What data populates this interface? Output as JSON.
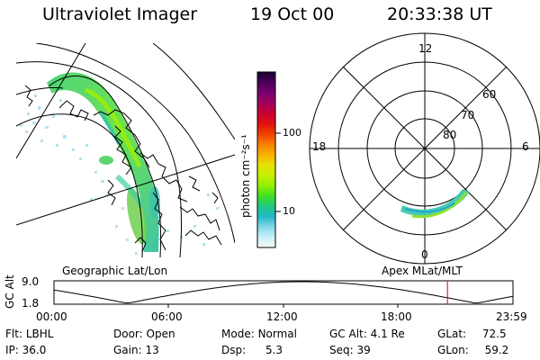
{
  "header": {
    "instrument": "Ultraviolet Imager",
    "date": "19 Oct 00",
    "time": "20:33:38 UT"
  },
  "left_panel": {
    "caption": "Geographic Lat/Lon"
  },
  "colorbar": {
    "unit_label": "photon cm⁻²s⁻¹",
    "ticks": [
      "100",
      "10"
    ],
    "scale": "log",
    "colors_top_to_bottom": [
      "#1a0030",
      "#4a005a",
      "#7a0070",
      "#a00060",
      "#c80030",
      "#e01010",
      "#f04000",
      "#f88000",
      "#f8b000",
      "#e8e000",
      "#c8f000",
      "#90f000",
      "#40e020",
      "#20c880",
      "#20b8c8",
      "#80d8e8",
      "#c8f0f8",
      "#f8f8f8"
    ]
  },
  "right_panel": {
    "caption": "Apex MLat/MLT",
    "mlt_labels": {
      "top": "12",
      "right": "6",
      "bottom": "0",
      "left": "18"
    },
    "mlat_labels": [
      "60",
      "70",
      "80"
    ]
  },
  "altitude_plot": {
    "axis_label": "GC Alt",
    "y_ticks": [
      "9.0",
      "1.8"
    ],
    "x_ticks": [
      "00:00",
      "06:00",
      "12:00",
      "18:00",
      "23:59"
    ],
    "marker_color": "#e00000",
    "marker_time": "20:33:38"
  },
  "status": {
    "row1": [
      {
        "label": "Flt:",
        "value": "LBHL"
      },
      {
        "label": "Door:",
        "value": "Open"
      },
      {
        "label": "Mode:",
        "value": "Normal"
      },
      {
        "label": "GC Alt:",
        "value": "4.1 Re"
      },
      {
        "label": "GLat:",
        "value": "72.5"
      }
    ],
    "row2": [
      {
        "label": "IP:",
        "value": "36.0"
      },
      {
        "label": "Gain:",
        "value": "13"
      },
      {
        "label": "Dsp:",
        "value": "5.3"
      },
      {
        "label": "Seq:",
        "value": "39"
      },
      {
        "label": "GLon:",
        "value": "59.2"
      }
    ]
  }
}
